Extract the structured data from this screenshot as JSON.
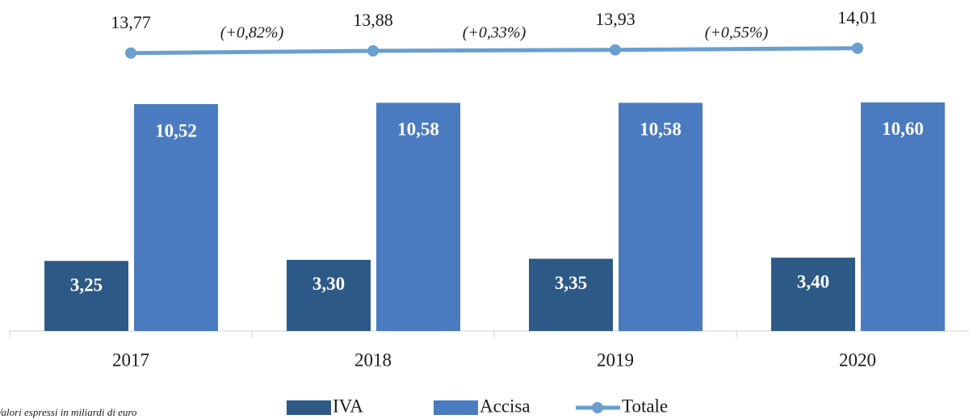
{
  "chart_data": {
    "type": "bar",
    "categories": [
      "2017",
      "2018",
      "2019",
      "2020"
    ],
    "ylim": [
      0,
      14.6
    ],
    "y2lim": [
      0,
      15.6
    ],
    "series": [
      {
        "name": "IVA",
        "color": "#2d5986",
        "values": [
          3.25,
          3.3,
          3.35,
          3.4
        ],
        "value_labels": [
          "3,25",
          "3,30",
          "3,35",
          "3,40"
        ]
      },
      {
        "name": "Accisa",
        "color": "#4a7bc0",
        "values": [
          10.52,
          10.58,
          10.58,
          10.6
        ],
        "value_labels": [
          "10,52",
          "10,58",
          "10,58",
          "10,60"
        ]
      },
      {
        "name": "Totale",
        "type": "line",
        "axis": "y2",
        "color": "#6a9fd0",
        "values": [
          13.77,
          13.88,
          13.93,
          14.01
        ],
        "value_labels": [
          "13,77",
          "13,88",
          "13,93",
          "14,01"
        ]
      }
    ],
    "annotations": [
      "(+0,82%)",
      "(+0,33%)",
      "(+0,55%)"
    ],
    "note": "Valori espressi in miliardi di euro"
  }
}
